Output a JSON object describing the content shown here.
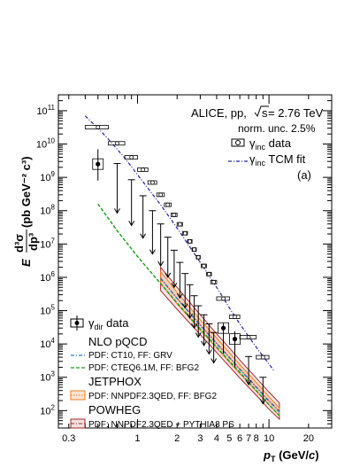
{
  "chart_data": {
    "type": "scatter",
    "x_scale": "log",
    "y_scale": "log",
    "xlim": [
      0.25,
      30
    ],
    "ylim": [
      30,
      300000000000
    ],
    "xlabel": {
      "main": "p",
      "sub": "T",
      "units": " (GeV/",
      "c": "c",
      "close": ")"
    },
    "ylabel": {
      "prefix": "E ",
      "frac_num": "d³σ",
      "frac_den": "dp³",
      "units": " (pb GeV⁻² c³)"
    },
    "x_tick_labels": [
      "0.3",
      "1",
      "2",
      "3",
      "4",
      "5",
      "6",
      "7",
      "8",
      "10",
      "20"
    ],
    "x_ticks": [
      0.3,
      1,
      2,
      3,
      4,
      5,
      6,
      7,
      8,
      10,
      20
    ],
    "y_ticks": [
      100,
      1000,
      10000,
      100000,
      1000000,
      10000000,
      100000000,
      1000000000,
      10000000000,
      100000000000
    ],
    "y_tick_labels": [
      {
        "b": "10",
        "e": "2"
      },
      {
        "b": "10",
        "e": "3"
      },
      {
        "b": "10",
        "e": "4"
      },
      {
        "b": "10",
        "e": "5"
      },
      {
        "b": "10",
        "e": "6"
      },
      {
        "b": "10",
        "e": "7"
      },
      {
        "b": "10",
        "e": "8"
      },
      {
        "b": "10",
        "e": "9"
      },
      {
        "b": "10",
        "e": "10"
      },
      {
        "b": "10",
        "e": "11"
      }
    ],
    "annotations": {
      "collab": "ALICE, pp,",
      "sqrt_s": "s",
      "energy": " = 2.76 TeV",
      "norm": "norm. unc. 2.5%",
      "panel": "(a)"
    },
    "legend_top": [
      {
        "label_main": "γ",
        "label_sub": "inc",
        "label_rest": " data",
        "style": "open-box-marker"
      },
      {
        "label_main": "γ",
        "label_sub": "inc",
        "label_rest": " TCM fit",
        "style": "dashdot",
        "color": "#2222aa"
      }
    ],
    "legend_bottom": {
      "data": {
        "label_main": "γ",
        "label_sub": "dir",
        "label_rest": " data"
      },
      "nlo_header": "NLO pQCD",
      "nlo_ct10": "PDF: CT10, FF: GRV",
      "nlo_cteq": "PDF: CTEQ6.1M, FF: BFG2",
      "jetphox_header": "JETPHOX",
      "jetphox_pdf": "PDF: NNPDF2.3QED, FF: BFG2",
      "powheg_header": "POWHEG",
      "powheg_pdf": "PDF: NNPDF2.3QED + PYTHIA8 PS"
    },
    "colors": {
      "inc_fit": "#2222aa",
      "nlo_ct10": "#1a7fd0",
      "nlo_cteq": "#1a9a1a",
      "jetphox": "#f07d22",
      "powheg": "#a52a2a"
    },
    "inc_data": {
      "x": [
        0.5,
        0.7,
        0.9,
        1.1,
        1.3,
        1.5,
        1.7,
        1.9,
        2.1,
        2.3,
        2.5,
        2.7,
        2.9,
        3.2,
        3.5,
        3.8,
        4.5,
        5.5,
        7.0,
        9.0
      ],
      "y": [
        32000000000.0,
        10500000000.0,
        4000000000.0,
        1700000000.0,
        700000000.0,
        300000000.0,
        150000000.0,
        75000000.0,
        39000000.0,
        21000000.0,
        12000000.0,
        6800000.0,
        4000000.0,
        2200000.0,
        1250000.0,
        720000.0,
        230000.0,
        65000.0,
        16000.0,
        4000.0
      ],
      "xerr": [
        0.1,
        0.1,
        0.1,
        0.1,
        0.1,
        0.1,
        0.1,
        0.1,
        0.1,
        0.1,
        0.1,
        0.1,
        0.1,
        0.15,
        0.15,
        0.2,
        0.5,
        0.5,
        1.0,
        1.0
      ]
    },
    "inc_fit_curve": {
      "x": [
        0.4,
        0.5,
        0.6,
        0.8,
        1.0,
        1.5,
        2.0,
        3.0,
        4.0,
        5.0,
        6.0,
        8.0,
        10.0,
        11.0
      ],
      "y": [
        70000000000.0,
        30000000000.0,
        14000000000.0,
        3800000000.0,
        1200000000.0,
        150000000.0,
        30000000.0,
        2800000.0,
        500000.0,
        120000.0,
        40000.0,
        8000.0,
        2500.0,
        1500.0
      ]
    },
    "dir_points": {
      "x": [
        0.5,
        4.5,
        5.5
      ],
      "y": [
        2500000000.0,
        30000.0,
        14000.0
      ],
      "yerr_lo": [
        1700000000.0,
        25000.0,
        12000.0
      ],
      "yerr_hi": [
        4500000000.0,
        12000.0,
        10000.0
      ]
    },
    "dir_upper_limits": {
      "x": [
        0.7,
        0.9,
        1.1,
        1.3,
        1.5,
        1.7,
        1.9,
        2.1,
        2.3,
        2.5,
        2.7,
        2.9,
        3.2,
        3.5,
        3.8,
        7.0,
        9.0
      ],
      "y": [
        2600000000.0,
        850000000.0,
        280000000.0,
        100000000.0,
        40000000.0,
        16000000.0,
        6500000.0,
        2800000.0,
        1300000.0,
        600000.0,
        280000.0,
        140000.0,
        75000.0,
        40000.0,
        22000.0,
        4200.0,
        1000.0
      ],
      "arrow_to": [
        85000000.0,
        36000000.0,
        15000000.0,
        5000000.0,
        2200000.0,
        1000000.0,
        500000.0,
        240000.0,
        120000.0,
        60000.0,
        30000.0,
        16000.0,
        9000.0,
        5000.0,
        2700.0,
        600.0,
        160.0
      ]
    },
    "nlo_ct10": {
      "x": [
        1.5,
        2.0,
        3.0,
        4.0,
        5.0,
        6.0,
        8.0,
        10.0,
        12.0
      ],
      "y": [
        950000.0,
        230000.0,
        36000.0,
        10000.0,
        3800.0,
        1700.0,
        500.0,
        190.0,
        90.0
      ]
    },
    "nlo_cteq": {
      "x": [
        0.5,
        0.7,
        1.0,
        1.5,
        2.0,
        3.0,
        4.0,
        5.0,
        6.0,
        8.0,
        10.0,
        12.0
      ],
      "y": [
        160000000.0,
        25000000.0,
        4200000.0,
        650000.0,
        170000.0,
        28000.0,
        8000.0,
        3000.0,
        1400.0,
        400.0,
        150.0,
        70.0
      ]
    },
    "jetphox_band": {
      "x": [
        1.5,
        2.0,
        3.0,
        4.0,
        5.0,
        6.0,
        8.0,
        10.0,
        12.0
      ],
      "ylo": [
        650000.0,
        160000.0,
        26000.0,
        7500.0,
        2800.0,
        1300.0,
        380.0,
        150.0,
        70.0
      ],
      "yhi": [
        1500000.0,
        350000.0,
        53000.0,
        15000.0,
        5500.0,
        2400.0,
        700.0,
        260.0,
        120.0
      ]
    },
    "powheg_band": {
      "x": [
        1.5,
        2.0,
        3.0,
        4.0,
        5.0,
        6.0,
        8.0,
        10.0,
        12.0
      ],
      "ylo": [
        400000.0,
        110000.0,
        19000.0,
        5500.0,
        2100.0,
        950.0,
        290.0,
        110.0,
        55.0
      ],
      "yhi": [
        2000000.0,
        500000.0,
        75000.0,
        20000.0,
        7500.0,
        3300.0,
        950.0,
        360.0,
        170.0
      ]
    }
  }
}
